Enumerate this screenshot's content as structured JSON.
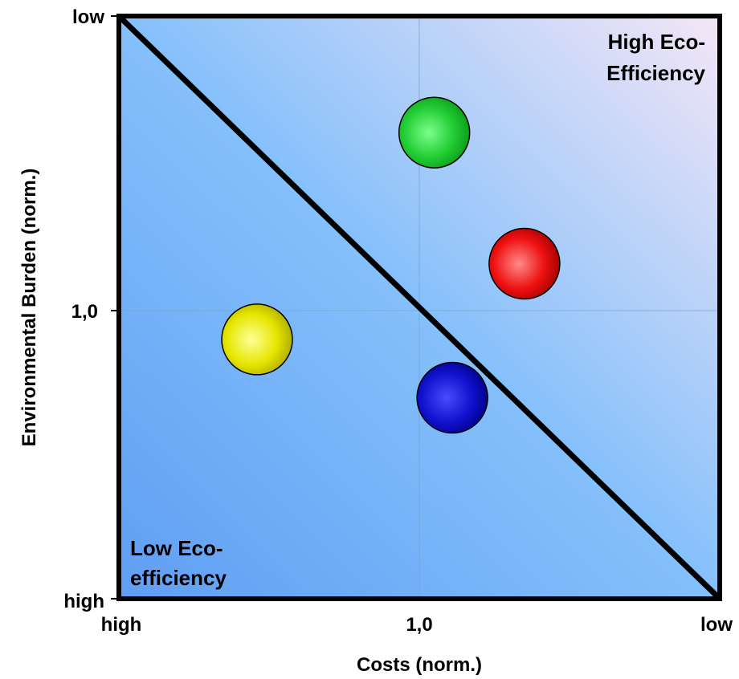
{
  "chart_data": {
    "type": "scatter",
    "title": "",
    "xlabel": "Costs (norm.)",
    "ylabel": "Environmental Burden (norm.)",
    "x_ticks": [
      "high",
      "1,0",
      "low"
    ],
    "y_ticks": [
      "low",
      "1,0",
      "high"
    ],
    "xlim": [
      0,
      2
    ],
    "ylim": [
      0,
      2
    ],
    "grid": true,
    "regions": {
      "top_right": [
        "High Eco-",
        "Efficiency"
      ],
      "bottom_left": [
        "Low Eco-",
        "efficiency"
      ]
    },
    "points": [
      {
        "x": 1.05,
        "y": 1.6,
        "color": "#22cc33"
      },
      {
        "x": 1.35,
        "y": 1.15,
        "color": "#ee1111"
      },
      {
        "x": 0.46,
        "y": 0.89,
        "color": "#e6e600"
      },
      {
        "x": 1.11,
        "y": 0.69,
        "color": "#1111cc"
      }
    ]
  }
}
